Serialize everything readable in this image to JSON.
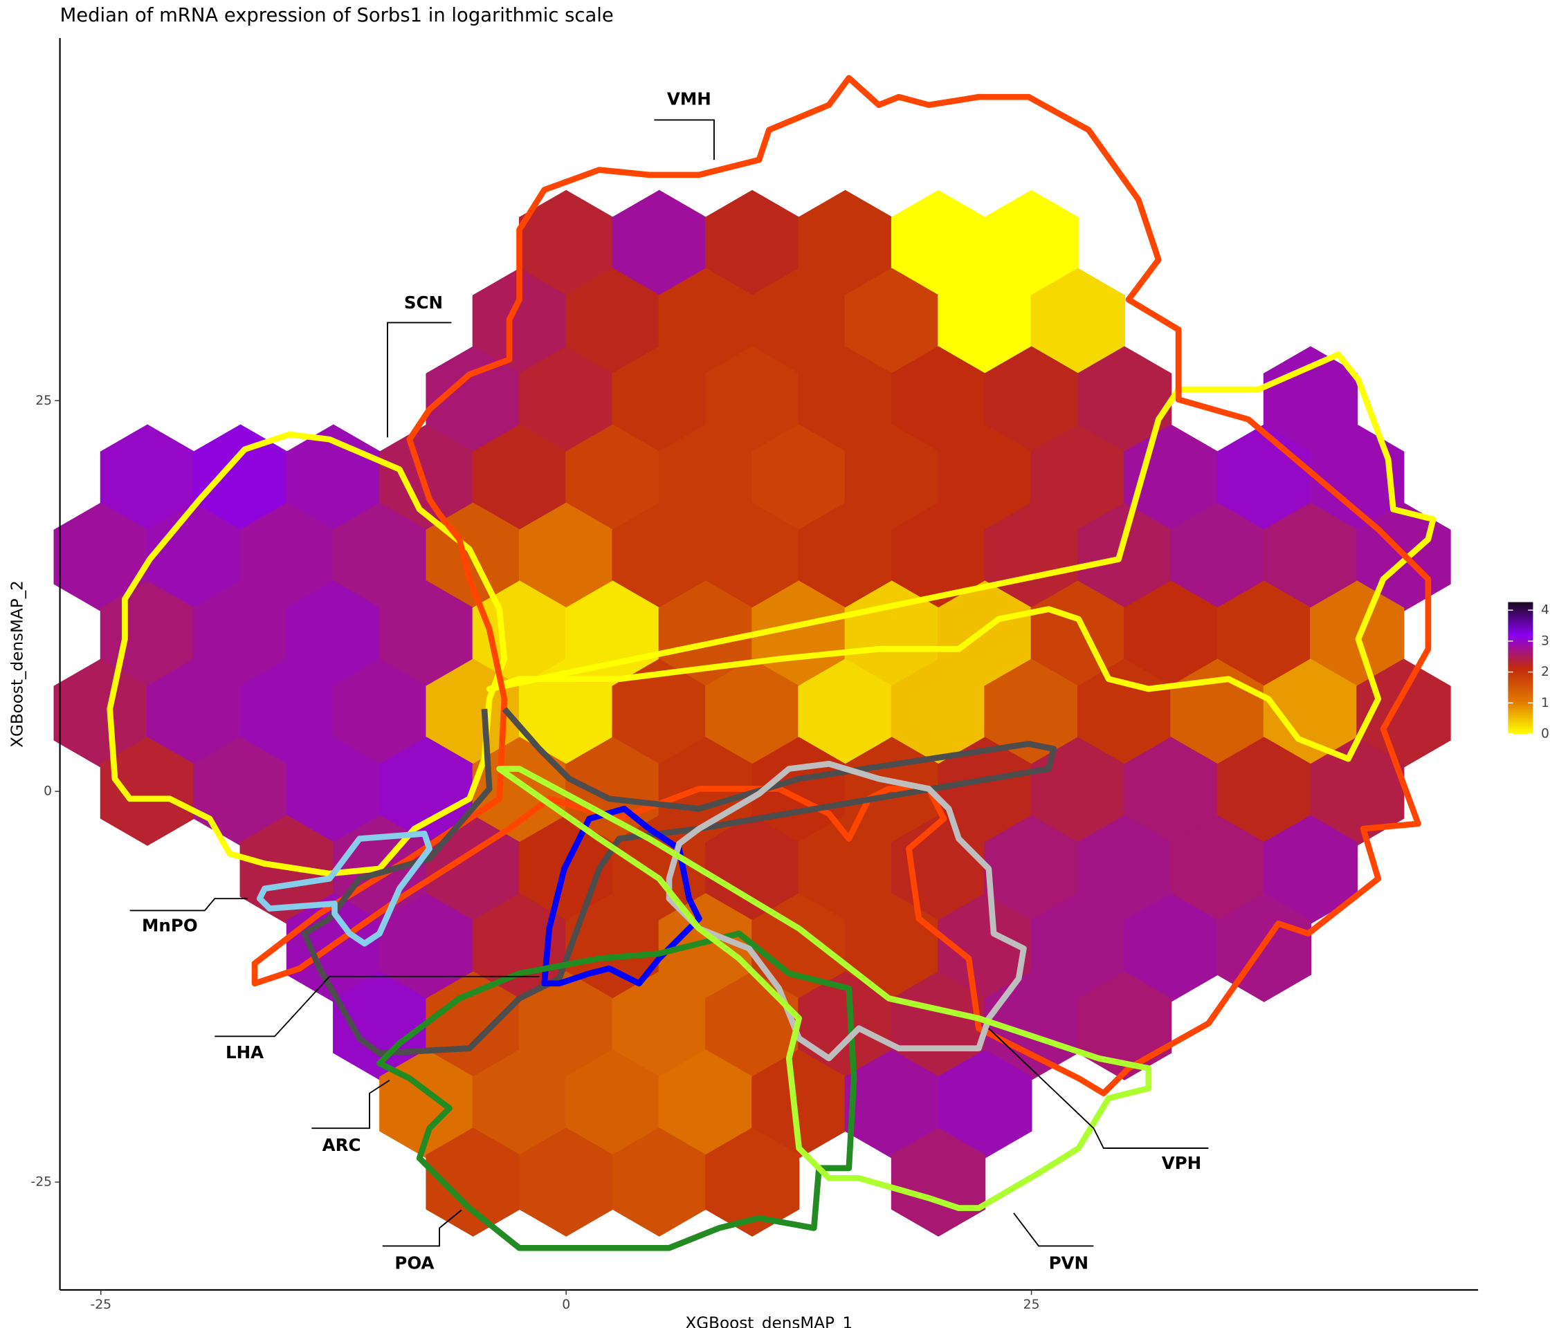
{
  "chart_data": {
    "type": "hexbin",
    "title": "Median of mRNA expression of Sorbs1 in logarithmic scale",
    "x_label": "XGBoost_densMAP_1",
    "y_label": "XGBoost_densMAP_2",
    "xlim": [
      -27.2,
      49.0
    ],
    "ylim": [
      -31.9,
      48.2
    ],
    "xticks": [
      -25,
      0,
      25
    ],
    "yticks": [
      -25,
      0,
      25
    ],
    "x": [
      0,
      5,
      10,
      15,
      20,
      25,
      -2.5,
      2.5,
      7.5,
      12.5,
      17.5,
      22.5,
      27.5,
      -5,
      0,
      5,
      10,
      15,
      20,
      25,
      30,
      40,
      -22.5,
      -17.5,
      -12.5,
      -7.5,
      -2.5,
      2.5,
      7.5,
      12.5,
      17.5,
      22.5,
      27.5,
      32.5,
      37.5,
      42.5,
      -25,
      -20,
      -15,
      -10,
      -5,
      0,
      5,
      10,
      15,
      20,
      25,
      30,
      35,
      40,
      45,
      -22.5,
      -17.5,
      -12.5,
      -7.5,
      -2.5,
      2.5,
      7.5,
      12.5,
      17.5,
      22.5,
      27.5,
      32.5,
      37.5,
      42.5,
      -25,
      -20,
      -15,
      -10,
      -5,
      0,
      5,
      10,
      15,
      20,
      25,
      30,
      35,
      40,
      45,
      -22.5,
      -17.5,
      -12.5,
      -7.5,
      -2.5,
      2.5,
      7.5,
      12.5,
      17.5,
      22.5,
      27.5,
      32.5,
      37.5,
      42.5,
      -15,
      -10,
      -5,
      0,
      5,
      10,
      15,
      20,
      25,
      30,
      35,
      40,
      -12.5,
      -7.5,
      -2.5,
      2.5,
      7.5,
      12.5,
      17.5,
      22.5,
      27.5,
      32.5,
      37.5,
      -10,
      -5,
      0,
      5,
      10,
      15,
      20,
      25,
      30,
      -7.5,
      -2.5,
      2.5,
      7.5,
      12.5,
      17.5,
      22.5,
      -5,
      0,
      5,
      10,
      20
    ],
    "y": [
      35,
      35,
      35,
      35,
      35,
      35,
      30,
      30,
      30,
      30,
      30,
      30,
      30,
      25,
      25,
      25,
      25,
      25,
      25,
      25,
      25,
      25,
      20,
      20,
      20,
      20,
      20,
      20,
      20,
      20,
      20,
      20,
      20,
      20,
      20,
      20,
      15,
      15,
      15,
      15,
      15,
      15,
      15,
      15,
      15,
      15,
      15,
      15,
      15,
      15,
      15,
      10,
      10,
      10,
      10,
      10,
      10,
      10,
      10,
      10,
      10,
      10,
      10,
      10,
      10,
      5,
      5,
      5,
      5,
      5,
      5,
      5,
      5,
      5,
      5,
      5,
      5,
      5,
      5,
      5,
      0,
      0,
      0,
      0,
      0,
      0,
      0,
      0,
      0,
      0,
      0,
      0,
      0,
      0,
      -5,
      -5,
      -5,
      -5,
      -5,
      -5,
      -5,
      -5,
      -5,
      -5,
      -5,
      -5,
      -10,
      -10,
      -10,
      -10,
      -10,
      -10,
      -10,
      -10,
      -10,
      -10,
      -10,
      -15,
      -15,
      -15,
      -15,
      -15,
      -15,
      -15,
      -15,
      -15,
      -20,
      -20,
      -20,
      -20,
      -20,
      -20,
      -20,
      -25,
      -25,
      -25,
      -25,
      -25
    ],
    "values": [
      2.3,
      2.8,
      2.2,
      2.0,
      0,
      0,
      2.5,
      2.2,
      2.0,
      2.0,
      1.8,
      0,
      0.3,
      2.6,
      2.3,
      2.0,
      1.9,
      2.0,
      2.1,
      2.2,
      2.4,
      2.9,
      3.0,
      3.1,
      2.9,
      2.5,
      2.2,
      1.8,
      1.9,
      1.8,
      2.0,
      2.1,
      2.3,
      2.8,
      3.0,
      2.9,
      2.8,
      2.9,
      2.8,
      2.7,
      1.5,
      1.2,
      1.9,
      1.9,
      2.0,
      2.1,
      2.3,
      2.5,
      2.7,
      2.6,
      2.8,
      2.6,
      2.8,
      2.9,
      2.7,
      0.3,
      0.2,
      1.6,
      1.0,
      0.4,
      0.5,
      1.8,
      2.1,
      2.0,
      1.2,
      2.5,
      2.8,
      2.9,
      2.8,
      0.6,
      0.2,
      1.9,
      1.4,
      0.3,
      0.5,
      1.5,
      2.0,
      1.4,
      0.8,
      2.3,
      2.3,
      2.7,
      2.9,
      3.0,
      1.3,
      1.6,
      2.0,
      2.1,
      2.0,
      2.2,
      2.4,
      2.6,
      2.2,
      2.4,
      2.4,
      2.7,
      2.5,
      2.1,
      2.0,
      2.2,
      2.0,
      2.2,
      2.6,
      2.7,
      2.6,
      2.8,
      2.9,
      2.8,
      2.3,
      2.0,
      1.3,
      1.9,
      2.0,
      2.5,
      2.7,
      2.8,
      2.7,
      3.0,
      1.7,
      1.5,
      1.3,
      1.6,
      2.3,
      2.4,
      2.7,
      2.6,
      1.2,
      1.5,
      1.4,
      1.2,
      2.0,
      2.8,
      2.9,
      1.8,
      1.7,
      1.6,
      1.9,
      2.6
    ],
    "colorbar": {
      "lim": [
        0,
        4.26
      ],
      "ticks": [
        0,
        1,
        2,
        3,
        4
      ],
      "colors": [
        "#ffff00",
        "#e07800",
        "#c02a0c",
        "#8a00f0",
        "#1a0a20"
      ]
    },
    "annotations": [
      "VMH",
      "SCN",
      "MnPO",
      "LHA",
      "ARC",
      "POA",
      "VPH",
      "PVN"
    ]
  }
}
